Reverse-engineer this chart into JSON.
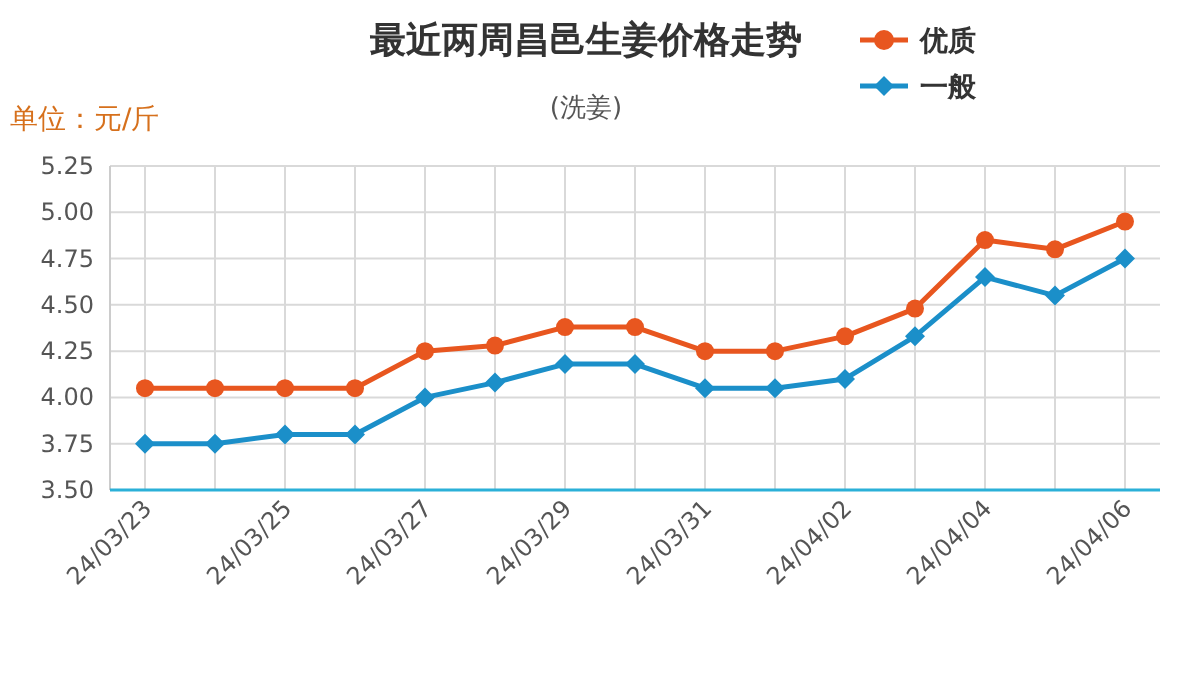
{
  "chart_data": {
    "type": "line",
    "title": "最近两周昌邑生姜价格走势",
    "subtitle": "(洗姜)",
    "ylabel": "单位：元/斤",
    "categories": [
      "24/03/23",
      null,
      "24/03/25",
      null,
      "24/03/27",
      null,
      "24/03/29",
      null,
      "24/03/31",
      null,
      "24/04/02",
      null,
      "24/04/04",
      null,
      "24/04/06"
    ],
    "series": [
      {
        "name": "优质",
        "color": "#e8561f",
        "marker": "circle",
        "values": [
          4.05,
          4.05,
          4.05,
          4.05,
          4.25,
          4.28,
          4.38,
          4.38,
          4.25,
          4.25,
          4.33,
          4.48,
          4.85,
          4.8,
          4.95
        ]
      },
      {
        "name": "一般",
        "color": "#1b8fc9",
        "marker": "diamond",
        "values": [
          3.75,
          3.75,
          3.8,
          3.8,
          4.0,
          4.08,
          4.18,
          4.18,
          4.05,
          4.05,
          4.1,
          4.33,
          4.65,
          4.55,
          4.75
        ]
      }
    ],
    "ylim": [
      3.5,
      5.25
    ],
    "yticks": [
      {
        "value": 3.5,
        "label": "3.50"
      },
      {
        "value": 3.75,
        "label": "3.75"
      },
      {
        "value": 4,
        "label": "4.00"
      },
      {
        "value": 4.25,
        "label": "4.25"
      },
      {
        "value": 4.5,
        "label": "4.50"
      },
      {
        "value": 4.75,
        "label": "4.75"
      },
      {
        "value": 5,
        "label": "5.00"
      },
      {
        "value": 5.25,
        "label": "5.25"
      }
    ],
    "grid": true,
    "legend": "top right",
    "line_style": "solid"
  }
}
